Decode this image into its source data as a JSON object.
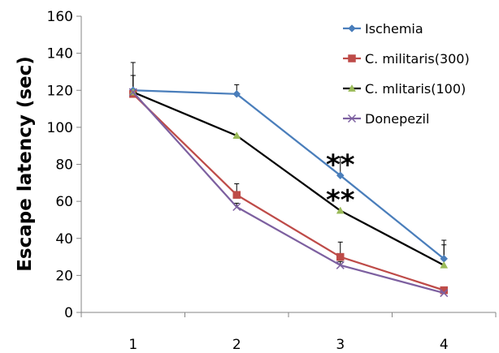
{
  "chart_data": {
    "type": "line",
    "title": "",
    "xlabel": "",
    "ylabel": "Escape latency (sec)",
    "categories": [
      "1",
      "2",
      "3",
      "4"
    ],
    "ylim": [
      0,
      160
    ],
    "yticks": [
      0,
      20,
      40,
      60,
      80,
      100,
      120,
      140,
      160
    ],
    "grid": false,
    "legend_position": "top-right",
    "series": [
      {
        "name": "Ischemia",
        "color": "#4a7ebb",
        "marker": "diamond",
        "values": [
          120,
          118,
          74,
          29
        ],
        "errors": [
          8,
          5,
          10,
          10
        ]
      },
      {
        "name": "C. militaris(300)",
        "color": "#be4b48",
        "marker": "square",
        "values": [
          118,
          63.5,
          30,
          12
        ],
        "errors": [
          10,
          6,
          8,
          1.5
        ]
      },
      {
        "name": "C. mlitaris(100)",
        "color": "#000000",
        "marker": "triangle",
        "values": [
          119,
          95.5,
          55,
          25.5
        ],
        "errors": [
          16,
          0,
          0,
          11
        ]
      },
      {
        "name": "Donepezil",
        "color": "#7d60a0",
        "marker": "x",
        "values": [
          119,
          57,
          25.5,
          10.5
        ],
        "errors": [
          0,
          2,
          2,
          2
        ]
      }
    ],
    "annotations": [
      {
        "text": "**",
        "x": "3",
        "y": 80
      },
      {
        "text": "**",
        "x": "3",
        "y": 61
      }
    ]
  }
}
